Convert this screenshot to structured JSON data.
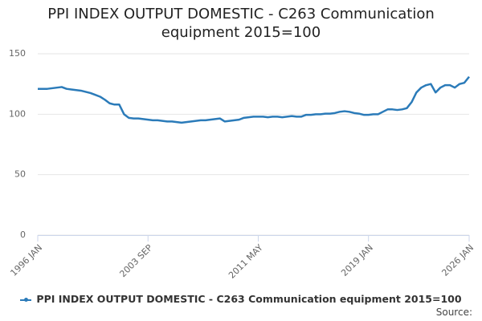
{
  "chart_data": {
    "type": "line",
    "title": "PPI INDEX OUTPUT DOMESTIC - C263 Communication equipment 2015=100",
    "source": "Source:",
    "categories": [
      "1996 JAN",
      null,
      null,
      null,
      null,
      null,
      null,
      null,
      null,
      null,
      null,
      null,
      null,
      null,
      null,
      null,
      null,
      null,
      null,
      null,
      null,
      null,
      null,
      "2003 SEP",
      null,
      null,
      null,
      null,
      null,
      null,
      null,
      null,
      null,
      null,
      null,
      null,
      null,
      null,
      null,
      null,
      null,
      null,
      null,
      null,
      null,
      null,
      "2011 MAY",
      null,
      null,
      null,
      null,
      null,
      null,
      null,
      null,
      null,
      null,
      null,
      null,
      null,
      null,
      null,
      null,
      null,
      null,
      null,
      null,
      null,
      null,
      "2019 JAN",
      null,
      null,
      null,
      null,
      null,
      null,
      null,
      null,
      null,
      null,
      null,
      null,
      null,
      null,
      null,
      null,
      null,
      null,
      null,
      null,
      "2026 JAN"
    ],
    "series": [
      {
        "name": "PPI INDEX OUTPUT DOMESTIC - C263 Communication equipment 2015=100",
        "color": "#2b7bb9",
        "values": [
          121,
          121,
          121,
          121.5,
          122,
          122.5,
          121,
          120.5,
          120,
          119.5,
          118.5,
          117.5,
          116,
          114.5,
          112,
          109,
          108,
          108,
          100,
          97,
          96.5,
          96.5,
          96,
          95.5,
          95,
          95,
          94.5,
          94,
          94,
          93.5,
          93,
          93.5,
          94,
          94.5,
          95,
          95,
          95.5,
          96,
          96.5,
          94,
          94.5,
          95,
          95.5,
          97,
          97.5,
          98,
          98,
          98,
          97.5,
          98,
          98,
          97.5,
          98,
          98.5,
          98,
          98,
          99.5,
          99.5,
          100,
          100,
          100.5,
          100.5,
          101,
          102,
          102.5,
          102,
          101,
          100.5,
          99.5,
          99.5,
          100,
          100,
          102,
          104,
          104,
          103.5,
          104,
          105,
          110,
          118,
          122,
          124,
          125,
          118,
          122,
          124,
          124,
          122,
          125,
          126,
          131
        ]
      }
    ],
    "ylim": [
      0,
      150
    ],
    "yticks": [
      0,
      50,
      100,
      150
    ],
    "grid": true,
    "legend": "bottom"
  }
}
